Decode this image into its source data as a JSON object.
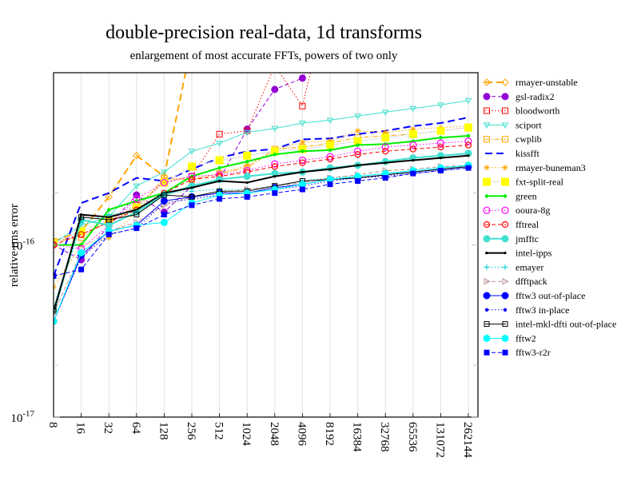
{
  "chart_data": {
    "type": "line",
    "title": "double-precision real-data, 1d transforms",
    "subtitle": "enlargement of most accurate FFTs, powers of two only",
    "xlabel": "",
    "ylabel": "relative rms error",
    "yscale": "log",
    "ylim": [
      1e-17,
      1e-15
    ],
    "ytick_labels": [
      {
        "base": "10",
        "exp": "-17",
        "value": 1e-17
      },
      {
        "base": "10",
        "exp": "-16",
        "value": 1e-16
      }
    ],
    "x": [
      "8",
      "16",
      "32",
      "64",
      "128",
      "256",
      "512",
      "1024",
      "2048",
      "4096",
      "8192",
      "16384",
      "32768",
      "65536",
      "131072",
      "262144"
    ],
    "grid": true,
    "legend_position": "right",
    "value_unit": 1e-16,
    "series": [
      {
        "name": "rmayer-unstable",
        "color": "#ffa500",
        "dash": "long",
        "marker": "diamond-open",
        "width": 2,
        "values": [
          1.05,
          1.2,
          1.9,
          3.3,
          2.5,
          15,
          null,
          null,
          null,
          null,
          null,
          null,
          null,
          null,
          null,
          null
        ]
      },
      {
        "name": "gsl-radix2",
        "color": "#9400d3",
        "dash": "dash",
        "marker": "circle",
        "width": 1,
        "values": [
          1.0,
          0.82,
          1.3,
          1.95,
          1.55,
          2.2,
          2.4,
          4.7,
          8.0,
          9.3,
          20,
          null,
          null,
          null,
          null,
          null
        ]
      },
      {
        "name": "bloodworth",
        "color": "#ff0000",
        "dash": "dot",
        "marker": "square-open",
        "width": 1,
        "values": [
          1.03,
          1.15,
          1.35,
          1.7,
          2.3,
          2.5,
          4.4,
          4.6,
          11,
          6.4,
          30,
          null,
          null,
          null,
          null,
          null
        ]
      },
      {
        "name": "sciport",
        "color": "#40e0d0",
        "dash": "solid",
        "marker": "triangle-down-open",
        "width": 1,
        "values": [
          1.02,
          1.3,
          1.45,
          2.2,
          2.65,
          3.5,
          3.9,
          4.5,
          4.75,
          5.1,
          5.3,
          5.6,
          5.9,
          6.2,
          6.5,
          6.9
        ]
      },
      {
        "name": "cwplib",
        "color": "#ffa500",
        "dash": "dashdot",
        "marker": "square-open",
        "width": 1,
        "values": [
          1.05,
          1.1,
          1.4,
          1.6,
          2.45,
          2.4,
          2.6,
          2.8,
          3.6,
          3.7,
          3.9,
          4.2,
          4.3,
          4.4,
          4.6,
          4.8
        ]
      },
      {
        "name": "kissfft",
        "color": "#0000ff",
        "dash": "long",
        "marker": "none",
        "width": 2,
        "values": [
          0.66,
          1.75,
          2.0,
          2.45,
          2.35,
          2.75,
          3.2,
          3.5,
          3.6,
          4.1,
          4.15,
          4.4,
          4.6,
          4.9,
          5.1,
          5.5
        ]
      },
      {
        "name": "rmayer-buneman3",
        "color": "#ffa500",
        "dash": "dot",
        "marker": "asterisk",
        "width": 1,
        "values": [
          0.57,
          1.0,
          1.1,
          1.55,
          2.4,
          2.4,
          2.6,
          2.9,
          3.55,
          3.95,
          4.0,
          4.6,
          4.5,
          4.7,
          4.8,
          4.9
        ]
      },
      {
        "name": "fxt-split-real",
        "color": "#dddddd",
        "dash": "solid",
        "marker": "square-yellow",
        "width": 1,
        "values": [
          1.02,
          1.2,
          1.4,
          1.65,
          2.3,
          2.85,
          3.1,
          3.3,
          3.5,
          3.6,
          3.8,
          4.0,
          4.2,
          4.4,
          4.6,
          4.8
        ]
      },
      {
        "name": "green",
        "color": "#00ee00",
        "dash": "solid",
        "marker": "dot",
        "width": 2,
        "values": [
          1.0,
          1.0,
          1.6,
          1.8,
          2.0,
          2.5,
          2.8,
          3.05,
          3.35,
          3.5,
          3.55,
          3.8,
          3.85,
          4.0,
          4.2,
          4.3
        ]
      },
      {
        "name": "ooura-8g",
        "color": "#ff00ff",
        "dash": "dot",
        "marker": "circle-open",
        "width": 1,
        "values": [
          1.0,
          0.95,
          1.3,
          1.85,
          2.3,
          2.5,
          2.55,
          2.7,
          2.95,
          3.1,
          3.25,
          3.5,
          3.7,
          3.8,
          3.9,
          4.0
        ]
      },
      {
        "name": "fftreal",
        "color": "#ff0000",
        "dash": "dash",
        "marker": "circle-open-small",
        "width": 1,
        "values": [
          1.0,
          1.15,
          1.35,
          1.6,
          2.0,
          2.4,
          2.5,
          2.65,
          2.85,
          3.0,
          3.15,
          3.35,
          3.5,
          3.6,
          3.7,
          3.8
        ]
      },
      {
        "name": "jmfftc",
        "color": "#40e0d0",
        "dash": "solid",
        "marker": "circle",
        "width": 2,
        "values": [
          0.42,
          1.4,
          1.3,
          1.55,
          1.95,
          2.2,
          2.4,
          2.5,
          2.6,
          2.65,
          2.8,
          2.9,
          3.05,
          3.2,
          3.3,
          3.4
        ]
      },
      {
        "name": "intel-ipps",
        "color": "#000000",
        "dash": "solid",
        "marker": "dot-small",
        "width": 2,
        "values": [
          0.4,
          1.5,
          1.45,
          1.6,
          2.0,
          2.15,
          2.35,
          2.3,
          2.5,
          2.65,
          2.75,
          2.9,
          3.0,
          3.1,
          3.2,
          3.3
        ]
      },
      {
        "name": "emayer",
        "color": "#00cccc",
        "dash": "dot",
        "marker": "plus",
        "width": 1,
        "values": [
          0.4,
          1.35,
          1.5,
          1.55,
          2.0,
          2.05,
          2.1,
          2.1,
          2.2,
          2.35,
          2.45,
          2.5,
          2.6,
          2.65,
          2.75,
          2.9
        ]
      },
      {
        "name": "dfftpack",
        "color": "#bc8f8f",
        "dash": "dash",
        "marker": "triangle-right-open",
        "width": 1,
        "values": [
          0.4,
          0.9,
          1.2,
          1.35,
          1.7,
          1.9,
          2.0,
          2.1,
          2.2,
          2.3,
          2.45,
          2.55,
          2.7,
          2.75,
          2.85,
          2.9
        ]
      },
      {
        "name": "fftw3 out-of-place",
        "color": "#0000ff",
        "dash": "solid",
        "marker": "circle",
        "width": 1,
        "values": [
          0.36,
          0.87,
          1.2,
          1.3,
          1.8,
          1.9,
          2.0,
          2.0,
          2.15,
          2.25,
          2.4,
          2.45,
          2.55,
          2.65,
          2.75,
          2.85
        ]
      },
      {
        "name": "fftw3 in-place",
        "color": "#0000ff",
        "dash": "dot",
        "marker": "dot",
        "width": 1,
        "values": [
          0.36,
          0.85,
          1.15,
          1.25,
          1.75,
          1.85,
          1.95,
          2.0,
          2.1,
          2.2,
          2.35,
          2.45,
          2.5,
          2.6,
          2.7,
          2.8
        ]
      },
      {
        "name": "intel-mkl-dfti out-of-place",
        "color": "#000000",
        "dash": "solid",
        "marker": "square-open-small",
        "width": 1,
        "values": [
          0.42,
          1.45,
          1.4,
          1.5,
          1.95,
          1.9,
          2.05,
          2.05,
          2.2,
          2.35,
          2.4,
          2.45,
          2.55,
          2.65,
          2.75,
          2.85
        ]
      },
      {
        "name": "fftw2",
        "color": "#00ffff",
        "dash": "solid",
        "marker": "circle",
        "width": 1,
        "values": [
          0.36,
          0.9,
          1.2,
          1.3,
          1.35,
          1.75,
          1.95,
          2.0,
          2.1,
          2.25,
          2.4,
          2.5,
          2.6,
          2.7,
          2.8,
          2.9
        ]
      },
      {
        "name": "fftw3-r2r",
        "color": "#0000ff",
        "dash": "dash",
        "marker": "square",
        "width": 1,
        "values": [
          0.66,
          0.72,
          1.15,
          1.25,
          1.5,
          1.7,
          1.85,
          1.9,
          2.0,
          2.1,
          2.25,
          2.35,
          2.45,
          2.6,
          2.7,
          2.8
        ]
      }
    ]
  }
}
